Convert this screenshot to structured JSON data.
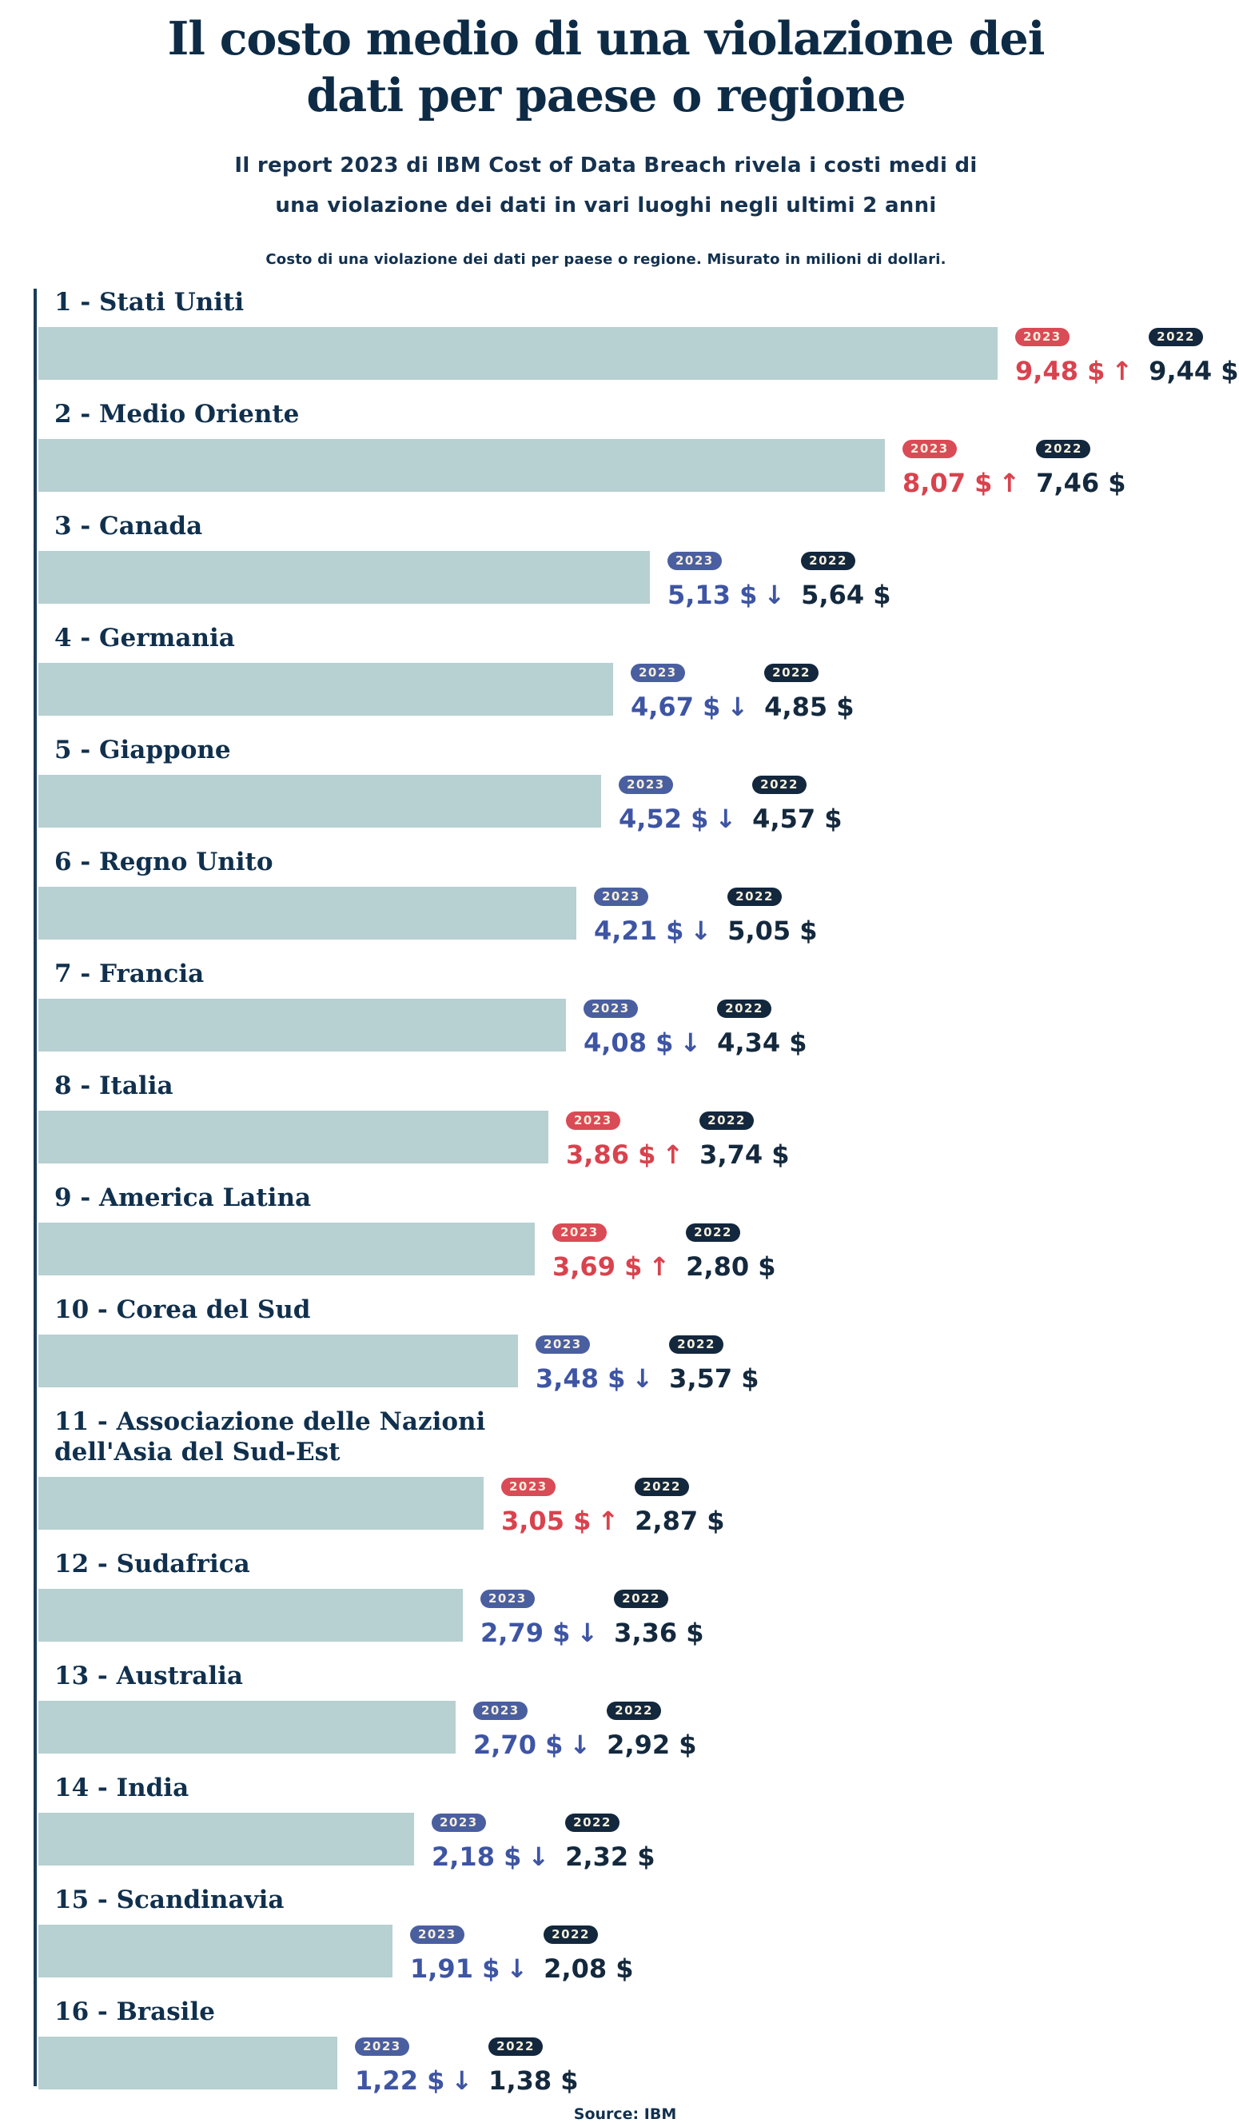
{
  "header": {
    "title_line1": "Il costo medio di una violazione dei",
    "title_line2": "dati per paese o regione",
    "subtitle_line1": "Il report 2023 di IBM Cost of Data Breach rivela i costi medi di",
    "subtitle_line2": "una violazione dei dati in vari luoghi negli ultimi 2 anni",
    "caption": "Costo di una violazione dei dati per paese o regione. Misurato in milioni di dollari."
  },
  "chart_data": {
    "type": "bar",
    "orientation": "horizontal",
    "title": "Il costo medio di una violazione dei dati per paese o regione",
    "unit": "milioni di dollari ($)",
    "legend_years": [
      "2023",
      "2022"
    ],
    "value_max": 9.48,
    "colors": {
      "bar": "#b7d0d1",
      "axis": "#1d3c57",
      "navy_text": "#14293d",
      "increase": "#d8434e",
      "increase_badge": "#d94b56",
      "decrease": "#3e55a3",
      "decrease_badge": "#4a5f9f",
      "badge_2022": "#13273d",
      "badge_text": "#f5efdc"
    },
    "rows": [
      {
        "rank": 1,
        "label": "1 - Stati Uniti",
        "value_2023": 9.48,
        "display_2023": "9,48 $",
        "trend": "up",
        "value_2022": 9.44,
        "display_2022": "9,44 $"
      },
      {
        "rank": 2,
        "label": "2 - Medio Oriente",
        "value_2023": 8.07,
        "display_2023": "8,07 $",
        "trend": "up",
        "value_2022": 7.46,
        "display_2022": "7,46 $"
      },
      {
        "rank": 3,
        "label": "3 - Canada",
        "value_2023": 5.13,
        "display_2023": "5,13 $",
        "trend": "down",
        "value_2022": 5.64,
        "display_2022": "5,64 $"
      },
      {
        "rank": 4,
        "label": "4 - Germania",
        "value_2023": 4.67,
        "display_2023": "4,67 $",
        "trend": "down",
        "value_2022": 4.85,
        "display_2022": "4,85 $"
      },
      {
        "rank": 5,
        "label": "5 - Giappone",
        "value_2023": 4.52,
        "display_2023": "4,52 $",
        "trend": "down",
        "value_2022": 4.57,
        "display_2022": "4,57 $"
      },
      {
        "rank": 6,
        "label": "6 - Regno Unito",
        "value_2023": 4.21,
        "display_2023": "4,21 $",
        "trend": "down",
        "value_2022": 5.05,
        "display_2022": "5,05 $"
      },
      {
        "rank": 7,
        "label": "7 - Francia",
        "value_2023": 4.08,
        "display_2023": "4,08 $",
        "trend": "down",
        "value_2022": 4.34,
        "display_2022": "4,34 $"
      },
      {
        "rank": 8,
        "label": "8 - Italia",
        "value_2023": 3.86,
        "display_2023": "3,86 $",
        "trend": "up",
        "value_2022": 3.74,
        "display_2022": "3,74 $"
      },
      {
        "rank": 9,
        "label": "9 - America Latina",
        "value_2023": 3.69,
        "display_2023": "3,69 $",
        "trend": "up",
        "value_2022": 2.8,
        "display_2022": "2,80 $"
      },
      {
        "rank": 10,
        "label": "10 - Corea del Sud",
        "value_2023": 3.48,
        "display_2023": "3,48 $",
        "trend": "down",
        "value_2022": 3.57,
        "display_2022": "3,57 $"
      },
      {
        "rank": 11,
        "label": "11 - Associazione delle Nazioni dell'Asia del Sud-Est",
        "value_2023": 3.05,
        "display_2023": "3,05 $",
        "trend": "up",
        "value_2022": 2.87,
        "display_2022": "2,87 $"
      },
      {
        "rank": 12,
        "label": "12 - Sudafrica",
        "value_2023": 2.79,
        "display_2023": "2,79 $",
        "trend": "down",
        "value_2022": 3.36,
        "display_2022": "3,36 $"
      },
      {
        "rank": 13,
        "label": "13 - Australia",
        "value_2023": 2.7,
        "display_2023": "2,70 $",
        "trend": "down",
        "value_2022": 2.92,
        "display_2022": "2,92 $"
      },
      {
        "rank": 14,
        "label": "14 - India",
        "value_2023": 2.18,
        "display_2023": "2,18 $",
        "trend": "down",
        "value_2022": 2.32,
        "display_2022": "2,32 $"
      },
      {
        "rank": 15,
        "label": "15 - Scandinavia",
        "value_2023": 1.91,
        "display_2023": "1,91 $",
        "trend": "down",
        "value_2022": 2.08,
        "display_2022": "2,08 $"
      },
      {
        "rank": 16,
        "label": "16 - Brasile",
        "value_2023": 1.22,
        "display_2023": "1,22 $",
        "trend": "down",
        "value_2022": 1.38,
        "display_2022": "1,38 $"
      }
    ]
  },
  "footer": {
    "source": "Source: IBM"
  }
}
